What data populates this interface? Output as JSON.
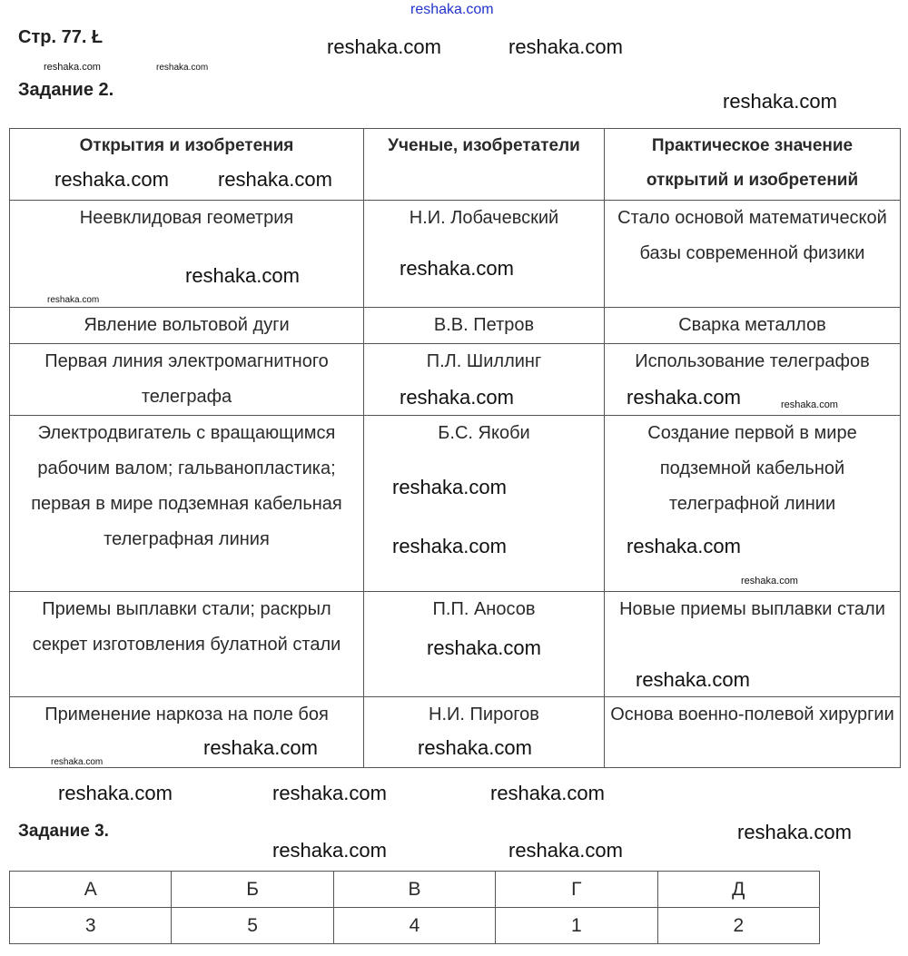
{
  "page_ref": "Стр. 77. Ł",
  "task2_title": "Задание 2.",
  "task3_title": "Задание 3.",
  "table2": {
    "headers": [
      "Открытия и изобретения",
      "Ученые, изобретатели",
      "Практическое значение открытий и изобретений"
    ],
    "rows": [
      [
        "Неевклидовая геометрия",
        "Н.И. Лобачевский",
        "Стало основой математической базы современной физики"
      ],
      [
        "Явление вольтовой дуги",
        "В.В. Петров",
        "Сварка металлов"
      ],
      [
        "Первая линия электромагнитного телеграфа",
        "П.Л. Шиллинг",
        "Использование телеграфов"
      ],
      [
        "Электродвигатель с вращающимся рабочим валом; гальванопластика; первая в мире подземная кабельная телеграфная линия",
        "Б.С. Якоби",
        "Создание первой в мире подземной кабельной телеграфной линии"
      ],
      [
        "Приемы выплавки стали; раскрыл секрет изготовления булатной стали",
        "П.П. Аносов",
        "Новые приемы выплавки стали"
      ],
      [
        "Применение наркоза на поле боя",
        "Н.И. Пирогов",
        "Основа военно-полевой хирургии"
      ]
    ]
  },
  "table3": {
    "headers": [
      "А",
      "Б",
      "В",
      "Г",
      "Д"
    ],
    "values": [
      "3",
      "5",
      "4",
      "1",
      "2"
    ]
  },
  "watermark": "reshaka.com"
}
